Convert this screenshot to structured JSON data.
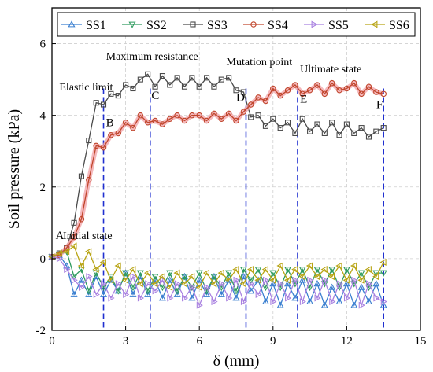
{
  "chart_data": {
    "type": "line",
    "xlabel": "δ (mm)",
    "ylabel": "Soil pressure (kPa)",
    "xlim": [
      0,
      15
    ],
    "ylim": [
      -2,
      7
    ],
    "xticks": [
      0,
      3,
      6,
      9,
      12,
      15
    ],
    "yticks": [
      -2,
      0,
      2,
      4,
      6
    ],
    "grid": true,
    "legend_position": "top",
    "series": [
      {
        "name": "SS1",
        "color": "#3a7fd0",
        "marker": "triangle-up",
        "x": [
          0,
          0.3,
          0.6,
          0.9,
          1.2,
          1.5,
          1.8,
          2.1,
          2.4,
          2.7,
          3.0,
          3.3,
          3.6,
          3.9,
          4.2,
          4.5,
          4.8,
          5.1,
          5.4,
          5.7,
          6.0,
          6.3,
          6.6,
          6.9,
          7.2,
          7.5,
          7.8,
          8.1,
          8.4,
          8.7,
          9.0,
          9.3,
          9.6,
          9.9,
          10.2,
          10.5,
          10.8,
          11.1,
          11.4,
          11.7,
          12.0,
          12.3,
          12.6,
          12.9,
          13.2,
          13.5
        ],
        "y": [
          0.05,
          0.1,
          -0.2,
          -1.0,
          -0.6,
          -1.0,
          -0.5,
          -1.0,
          -0.6,
          -0.9,
          -0.4,
          -1.0,
          -0.5,
          -1.0,
          -0.6,
          -1.1,
          -0.6,
          -1.0,
          -0.5,
          -1.1,
          -0.6,
          -1.0,
          -0.5,
          -1.0,
          -0.6,
          -1.1,
          -0.5,
          -0.9,
          -0.6,
          -1.2,
          -0.7,
          -1.3,
          -0.7,
          -1.1,
          -0.6,
          -1.2,
          -0.7,
          -1.3,
          -0.8,
          -1.2,
          -0.7,
          -1.3,
          -0.8,
          -1.2,
          -0.7,
          -1.3
        ]
      },
      {
        "name": "SS2",
        "color": "#2e9b5e",
        "marker": "triangle-down",
        "x": [
          0,
          0.3,
          0.6,
          0.9,
          1.2,
          1.5,
          1.8,
          2.1,
          2.4,
          2.7,
          3.0,
          3.3,
          3.6,
          3.9,
          4.2,
          4.5,
          4.8,
          5.1,
          5.4,
          5.7,
          6.0,
          6.3,
          6.6,
          6.9,
          7.2,
          7.5,
          7.8,
          8.1,
          8.4,
          8.7,
          9.0,
          9.3,
          9.6,
          9.9,
          10.2,
          10.5,
          10.8,
          11.1,
          11.4,
          11.7,
          12.0,
          12.3,
          12.6,
          12.9,
          13.2,
          13.5
        ],
        "y": [
          0.05,
          0.1,
          0.2,
          -0.5,
          -0.3,
          -0.9,
          -0.4,
          -0.8,
          -0.5,
          -0.9,
          -0.4,
          -0.8,
          -0.4,
          -0.9,
          -0.5,
          -0.8,
          -0.4,
          -0.9,
          -0.5,
          -0.8,
          -0.4,
          -0.9,
          -0.5,
          -0.8,
          -0.4,
          -0.9,
          -0.3,
          -0.6,
          -0.3,
          -0.8,
          -0.4,
          -0.8,
          -0.3,
          -0.7,
          -0.3,
          -0.8,
          -0.3,
          -0.7,
          -0.3,
          -0.8,
          -0.3,
          -0.7,
          -0.4,
          -0.8,
          -0.4,
          -0.4
        ]
      },
      {
        "name": "SS3",
        "color": "#4a4a4a",
        "marker": "square",
        "x": [
          0,
          0.3,
          0.6,
          0.9,
          1.2,
          1.5,
          1.8,
          2.1,
          2.4,
          2.7,
          3.0,
          3.3,
          3.6,
          3.9,
          4.2,
          4.5,
          4.8,
          5.1,
          5.4,
          5.7,
          6.0,
          6.3,
          6.6,
          6.9,
          7.2,
          7.5,
          7.8,
          8.1,
          8.4,
          8.7,
          9.0,
          9.3,
          9.6,
          9.9,
          10.2,
          10.5,
          10.8,
          11.1,
          11.4,
          11.7,
          12.0,
          12.3,
          12.6,
          12.9,
          13.2,
          13.5
        ],
        "y": [
          0.05,
          0.15,
          0.3,
          1.0,
          2.3,
          3.3,
          4.35,
          4.3,
          4.6,
          4.55,
          4.85,
          4.75,
          5.0,
          5.15,
          4.8,
          5.1,
          4.85,
          5.05,
          4.8,
          5.05,
          4.8,
          5.05,
          4.8,
          5.0,
          5.05,
          4.7,
          4.65,
          3.95,
          4.0,
          3.7,
          3.9,
          3.65,
          3.8,
          3.5,
          3.9,
          3.55,
          3.75,
          3.5,
          3.8,
          3.45,
          3.75,
          3.5,
          3.65,
          3.4,
          3.55,
          3.65
        ]
      },
      {
        "name": "SS4",
        "color": "#c0462c",
        "marker": "circle",
        "x": [
          0,
          0.3,
          0.6,
          0.9,
          1.2,
          1.5,
          1.8,
          2.1,
          2.4,
          2.7,
          3.0,
          3.3,
          3.6,
          3.9,
          4.2,
          4.5,
          4.8,
          5.1,
          5.4,
          5.7,
          6.0,
          6.3,
          6.6,
          6.9,
          7.2,
          7.5,
          7.8,
          8.1,
          8.4,
          8.7,
          9.0,
          9.3,
          9.6,
          9.9,
          10.2,
          10.5,
          10.8,
          11.1,
          11.4,
          11.7,
          12.0,
          12.3,
          12.6,
          12.9,
          13.2,
          13.5
        ],
        "y": [
          0.05,
          0.1,
          0.3,
          0.6,
          1.1,
          2.2,
          3.15,
          3.1,
          3.45,
          3.5,
          3.8,
          3.65,
          4.0,
          3.8,
          3.85,
          3.75,
          3.9,
          4.0,
          3.85,
          4.0,
          4.0,
          3.85,
          4.05,
          3.9,
          4.05,
          3.85,
          4.1,
          4.3,
          4.5,
          4.4,
          4.75,
          4.55,
          4.7,
          4.85,
          4.6,
          4.7,
          4.85,
          4.6,
          4.9,
          4.7,
          4.75,
          4.9,
          4.6,
          4.8,
          4.65,
          4.6
        ]
      },
      {
        "name": "SS5",
        "color": "#a880e0",
        "marker": "triangle-right",
        "x": [
          0,
          0.3,
          0.6,
          0.9,
          1.2,
          1.5,
          1.8,
          2.1,
          2.4,
          2.7,
          3.0,
          3.3,
          3.6,
          3.9,
          4.2,
          4.5,
          4.8,
          5.1,
          5.4,
          5.7,
          6.0,
          6.3,
          6.6,
          6.9,
          7.2,
          7.5,
          7.8,
          8.1,
          8.4,
          8.7,
          9.0,
          9.3,
          9.6,
          9.9,
          10.2,
          10.5,
          10.8,
          11.1,
          11.4,
          11.7,
          12.0,
          12.3,
          12.6,
          12.9,
          13.2,
          13.5
        ],
        "y": [
          0.05,
          0.0,
          -0.3,
          -0.6,
          -0.8,
          -0.5,
          -1.0,
          -0.7,
          -1.1,
          -0.7,
          -1.0,
          -0.5,
          -1.1,
          -0.7,
          -0.9,
          -0.6,
          -1.1,
          -0.7,
          -1.1,
          -0.8,
          -1.3,
          -0.8,
          -1.2,
          -0.7,
          -1.1,
          -0.6,
          -1.2,
          -0.7,
          -1.0,
          -0.6,
          -1.2,
          -0.7,
          -1.1,
          -0.6,
          -1.2,
          -0.6,
          -1.1,
          -0.6,
          -1.2,
          -0.7,
          -1.1,
          -0.6,
          -1.3,
          -0.7,
          -1.1,
          -1.2
        ]
      },
      {
        "name": "SS6",
        "color": "#b8a414",
        "marker": "triangle-left",
        "x": [
          0,
          0.3,
          0.6,
          0.9,
          1.2,
          1.5,
          1.8,
          2.1,
          2.4,
          2.7,
          3.0,
          3.3,
          3.6,
          3.9,
          4.2,
          4.5,
          4.8,
          5.1,
          5.4,
          5.7,
          6.0,
          6.3,
          6.6,
          6.9,
          7.2,
          7.5,
          7.8,
          8.1,
          8.4,
          8.7,
          9.0,
          9.3,
          9.6,
          9.9,
          10.2,
          10.5,
          10.8,
          11.1,
          11.4,
          11.7,
          12.0,
          12.3,
          12.6,
          12.9,
          13.2,
          13.5
        ],
        "y": [
          0.05,
          0.15,
          0.2,
          0.35,
          -0.2,
          0.2,
          -0.3,
          -0.1,
          -0.6,
          -0.2,
          -0.6,
          -0.3,
          -0.7,
          -0.4,
          -0.7,
          -0.5,
          -0.8,
          -0.4,
          -0.7,
          -0.5,
          -0.8,
          -0.4,
          -0.7,
          -0.4,
          -0.6,
          -0.3,
          -0.7,
          -0.3,
          -0.6,
          -0.3,
          -0.6,
          -0.2,
          -0.6,
          -0.3,
          -0.5,
          -0.2,
          -0.5,
          -0.3,
          -0.5,
          -0.2,
          -0.6,
          -0.2,
          -0.6,
          -0.3,
          -0.5,
          -0.1
        ]
      }
    ],
    "vlines": [
      2.1,
      4.0,
      7.9,
      10.0,
      13.5
    ],
    "annotations": [
      {
        "text": "Elastic limit",
        "x": 0.3,
        "y": 4.7
      },
      {
        "text": "Maximum resistance",
        "x": 2.2,
        "y": 5.55
      },
      {
        "text": "Mutation point",
        "x": 7.1,
        "y": 5.4
      },
      {
        "text": "Ultimate state",
        "x": 10.1,
        "y": 5.2
      },
      {
        "text": "Initial state",
        "x": 0.45,
        "y": 0.55
      }
    ],
    "point_labels": [
      {
        "text": "A",
        "x": 0.15,
        "y": 0.55
      },
      {
        "text": "B",
        "x": 2.2,
        "y": 3.7
      },
      {
        "text": "C",
        "x": 4.05,
        "y": 4.45
      },
      {
        "text": "D",
        "x": 7.5,
        "y": 4.4
      },
      {
        "text": "E",
        "x": 10.1,
        "y": 4.35
      },
      {
        "text": "F",
        "x": 13.2,
        "y": 4.2
      }
    ]
  }
}
